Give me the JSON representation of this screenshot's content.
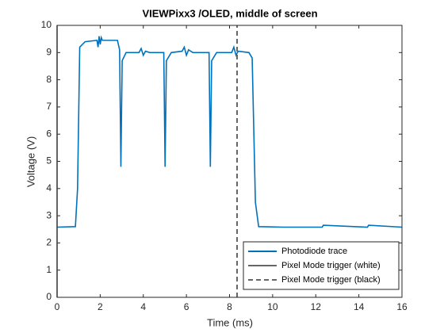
{
  "chart_data": {
    "type": "line",
    "title": "VIEWPixx3 /OLED, middle of screen",
    "xlabel": "Time (ms)",
    "ylabel": "Voltage (V)",
    "xlim": [
      0,
      16
    ],
    "xticks": [
      0,
      2,
      4,
      6,
      8,
      10,
      12,
      14,
      16
    ],
    "ylim": [
      0,
      10
    ],
    "yticks": [
      0,
      1,
      2,
      3,
      4,
      5,
      6,
      7,
      8,
      9,
      10
    ],
    "legend": "lower right",
    "series": [
      {
        "name": "Photodiode trace",
        "color": "#0072bd",
        "dash": "solid",
        "x": [
          0,
          0.85,
          0.95,
          1.05,
          1.3,
          1.85,
          1.9,
          1.95,
          2.0,
          2.05,
          2.1,
          2.8,
          2.9,
          2.96,
          3.02,
          3.2,
          3.8,
          3.9,
          4.0,
          4.1,
          4.3,
          4.8,
          4.95,
          5.01,
          5.07,
          5.3,
          5.8,
          5.9,
          6.0,
          6.1,
          6.3,
          6.9,
          7.05,
          7.11,
          7.17,
          7.4,
          8.1,
          8.2,
          8.3,
          8.4,
          8.9,
          9.05,
          9.2,
          9.35,
          10.5,
          12.3,
          12.35,
          14.4,
          14.45,
          16
        ],
        "values": [
          2.58,
          2.6,
          4,
          9.2,
          9.4,
          9.45,
          9.2,
          9.6,
          9.3,
          9.55,
          9.45,
          9.45,
          9.1,
          4.8,
          8.7,
          9.0,
          9.0,
          9.15,
          8.9,
          9.05,
          9.0,
          9.0,
          9.0,
          4.8,
          8.7,
          9.0,
          9.05,
          9.2,
          8.9,
          9.1,
          9.0,
          9.0,
          9.0,
          4.8,
          8.7,
          9.0,
          9.0,
          9.2,
          8.9,
          9.05,
          9.0,
          8.8,
          3.5,
          2.6,
          2.58,
          2.58,
          2.65,
          2.58,
          2.65,
          2.58
        ]
      },
      {
        "name": "Pixel Mode trigger (white)",
        "color": "#666666",
        "dash": "solid",
        "x": [
          0,
          0
        ],
        "values": [
          0,
          10
        ]
      },
      {
        "name": "Pixel Mode trigger (black)",
        "color": "#666666",
        "dash": "dashed",
        "x": [
          8.35,
          8.35
        ],
        "values": [
          0,
          10
        ]
      }
    ]
  }
}
